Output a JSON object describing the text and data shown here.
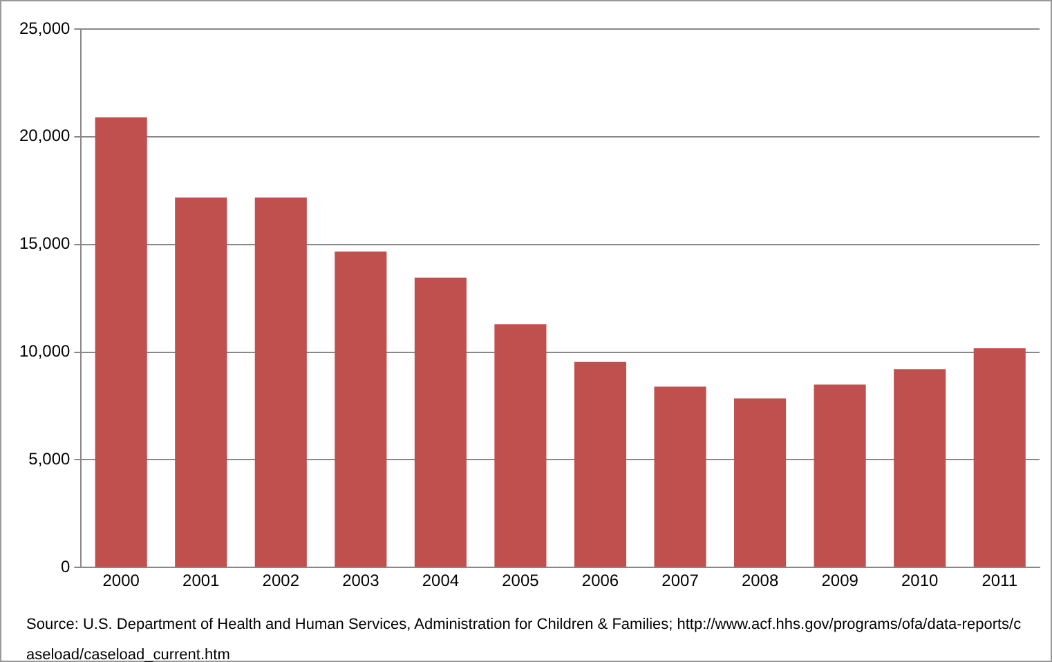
{
  "chart_data": {
    "type": "bar",
    "categories": [
      "2000",
      "2001",
      "2002",
      "2003",
      "2004",
      "2005",
      "2006",
      "2007",
      "2008",
      "2009",
      "2010",
      "2011"
    ],
    "values": [
      20900,
      17180,
      17180,
      14670,
      13460,
      11290,
      9540,
      8400,
      7850,
      8490,
      9210,
      10180
    ],
    "color": "#c0504d",
    "ylim": [
      0,
      25000
    ],
    "yticks": [
      {
        "value": 0,
        "label": "0"
      },
      {
        "value": 5000,
        "label": "5,000"
      },
      {
        "value": 10000,
        "label": "10,000"
      },
      {
        "value": 15000,
        "label": "15,000"
      },
      {
        "value": 20000,
        "label": "20,000"
      },
      {
        "value": 25000,
        "label": "25,000"
      }
    ],
    "grid": "y",
    "legend": false,
    "annotations": [
      "Source: U.S. Department of Health and Human Services, Administration for Children & Families; http://www.acf.hhs.gov/programs/ofa/data-reports/caseload/caseload_current.htm"
    ]
  }
}
